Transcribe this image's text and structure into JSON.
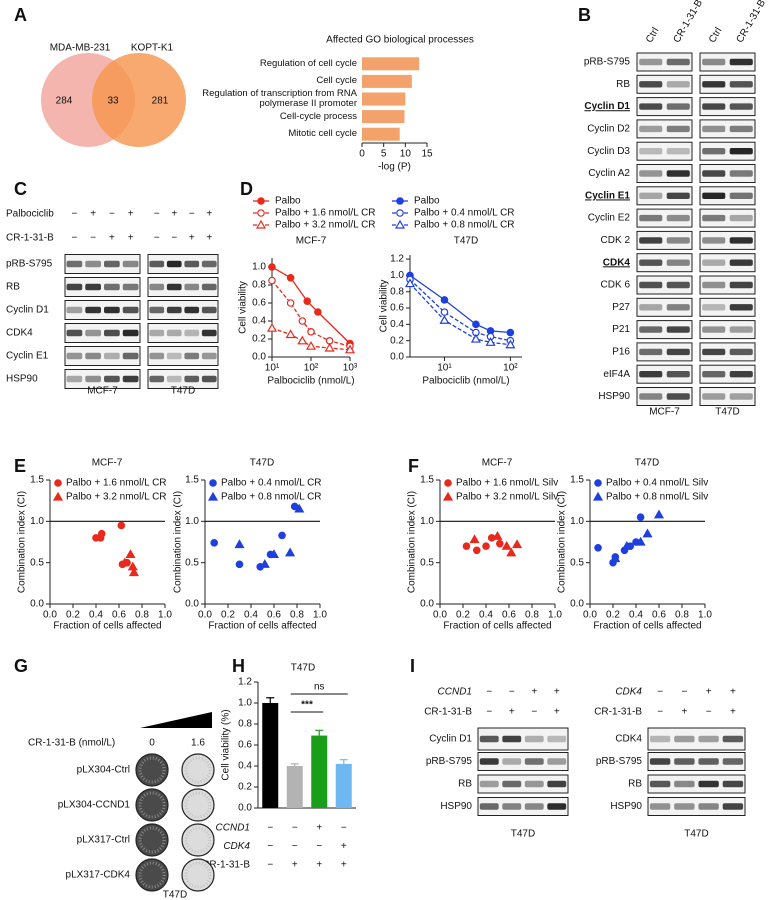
{
  "panel_labels": [
    "A",
    "B",
    "C",
    "D",
    "E",
    "F",
    "G",
    "H",
    "I"
  ],
  "venn": {
    "sets": [
      "MDA-MB-231",
      "KOPT-K1"
    ],
    "counts": [
      284,
      33,
      281
    ],
    "colors": [
      "#f4b5ae",
      "#f7964f"
    ]
  },
  "chart_data": [
    {
      "type": "barh",
      "title": "Affected GO biological processes",
      "categories": [
        "Regulation of cell cycle",
        "Cell cycle",
        "Regulation of transcription from RNA polymerase II promoter",
        "Cell-cycle process",
        "Mitotic cell cycle"
      ],
      "values": [
        13.2,
        11.5,
        10.0,
        9.8,
        8.7
      ],
      "color": "#f4a26b",
      "xlim": [
        0,
        15
      ],
      "xticks": [
        0,
        5,
        10,
        15
      ],
      "xlabel": "-log (P)"
    },
    {
      "type": "line",
      "title": "MCF-7",
      "xlabel": "Palbociclib (nmol/L)",
      "ylabel": "Cell viability",
      "xscale": "log",
      "xlim": [
        10,
        1000
      ],
      "xticks": [
        {
          "value": 10,
          "label": "10¹"
        },
        {
          "value": 100,
          "label": "10²"
        },
        {
          "value": 1000,
          "label": "10³"
        }
      ],
      "ylim": [
        0,
        1.1
      ],
      "yticks": [
        {
          "value": 0,
          "label": "0.0"
        },
        {
          "value": 0.2,
          "label": "0.2"
        },
        {
          "value": 0.4,
          "label": "0.4"
        },
        {
          "value": 0.6,
          "label": "0.6"
        },
        {
          "value": 0.8,
          "label": "0.8"
        },
        {
          "value": 1,
          "label": "1.0"
        }
      ],
      "series": [
        {
          "name": "Palbo",
          "color": "#e8291c",
          "marker": "circle",
          "line": "solid",
          "x": [
            10,
            30,
            80,
            150,
            1000
          ],
          "values": [
            1.0,
            0.88,
            0.62,
            0.5,
            0.15
          ]
        },
        {
          "name": "Palbo + 1.6 nmol/L CR",
          "color": "#e8291c",
          "marker": "open-circle",
          "line": "dashed",
          "x": [
            10,
            30,
            60,
            100,
            300,
            1000
          ],
          "values": [
            0.85,
            0.6,
            0.4,
            0.28,
            0.18,
            0.12
          ]
        },
        {
          "name": "Palbo + 3.2 nmol/L CR",
          "color": "#e8291c",
          "marker": "open-triangle",
          "line": "dashed",
          "x": [
            10,
            30,
            60,
            100,
            300,
            1000
          ],
          "values": [
            0.32,
            0.25,
            0.18,
            0.12,
            0.1,
            0.08
          ]
        }
      ]
    },
    {
      "type": "line",
      "title": "T47D",
      "xlabel": "Palbociclib (nmol/L)",
      "ylabel": "Cell viability",
      "xscale": "log",
      "xlim": [
        3,
        150
      ],
      "xticks": [
        {
          "value": 10,
          "label": "10¹"
        },
        {
          "value": 100,
          "label": "10²"
        }
      ],
      "ylim": [
        0,
        1.25
      ],
      "yticks": [
        {
          "value": 0,
          "label": "0.0"
        },
        {
          "value": 0.2,
          "label": "0.2"
        },
        {
          "value": 0.4,
          "label": "0.4"
        },
        {
          "value": 0.6,
          "label": "0.6"
        },
        {
          "value": 0.8,
          "label": "0.8"
        },
        {
          "value": 1,
          "label": "1.0"
        },
        {
          "value": 1.2,
          "label": "1.2"
        }
      ],
      "series": [
        {
          "name": "Palbo",
          "color": "#1f3fe0",
          "marker": "circle",
          "line": "solid",
          "x": [
            3,
            10,
            30,
            50,
            100
          ],
          "values": [
            1.0,
            0.7,
            0.4,
            0.32,
            0.3
          ]
        },
        {
          "name": "Palbo + 0.4 nmol/L CR",
          "color": "#1f3fe0",
          "marker": "open-circle",
          "line": "dashed",
          "x": [
            3,
            10,
            30,
            50,
            100
          ],
          "values": [
            0.95,
            0.55,
            0.3,
            0.25,
            0.2
          ]
        },
        {
          "name": "Palbo + 0.8 nmol/L CR",
          "color": "#1f3fe0",
          "marker": "open-triangle",
          "line": "dashed",
          "x": [
            3,
            10,
            30,
            50,
            100
          ],
          "values": [
            0.9,
            0.45,
            0.22,
            0.18,
            0.15
          ]
        }
      ]
    },
    {
      "type": "scatter",
      "title": "MCF-7",
      "xlabel": "Fraction of cells affected",
      "ylabel": "Combination index (CI)",
      "reference_line": 1,
      "xlim": [
        0,
        1
      ],
      "xticks": [
        {
          "value": 0,
          "label": "0.0"
        },
        {
          "value": 0.2,
          "label": "0.2"
        },
        {
          "value": 0.4,
          "label": "0.4"
        },
        {
          "value": 0.6,
          "label": "0.6"
        },
        {
          "value": 0.8,
          "label": "0.8"
        },
        {
          "value": 1,
          "label": "1.0"
        }
      ],
      "ylim": [
        0,
        1.5
      ],
      "yticks": [
        {
          "value": 0,
          "label": "0.0"
        },
        {
          "value": 0.5,
          "label": "0.5"
        },
        {
          "value": 1,
          "label": "1.0"
        },
        {
          "value": 1.5,
          "label": "1.5"
        }
      ],
      "series": [
        {
          "name": "Palbo + 1.6 nmol/L CR",
          "color": "#e8291c",
          "marker": "circle",
          "x": [
            0.4,
            0.44,
            0.45,
            0.62,
            0.63,
            0.67
          ],
          "values": [
            0.8,
            0.8,
            0.85,
            0.95,
            0.48,
            0.5
          ]
        },
        {
          "name": "Palbo + 3.2 nmol/L CR",
          "color": "#e8291c",
          "marker": "triangle",
          "x": [
            0.65,
            0.7,
            0.72,
            0.73
          ],
          "values": [
            0.5,
            0.6,
            0.45,
            0.38
          ]
        }
      ]
    },
    {
      "type": "scatter",
      "title": "T47D",
      "xlabel": "Fraction of cells affected",
      "ylabel": "Combination index (CI)",
      "reference_line": 1,
      "xlim": [
        0,
        1
      ],
      "xticks": [
        {
          "value": 0,
          "label": "0.0"
        },
        {
          "value": 0.2,
          "label": "0.2"
        },
        {
          "value": 0.4,
          "label": "0.4"
        },
        {
          "value": 0.6,
          "label": "0.6"
        },
        {
          "value": 0.8,
          "label": "0.8"
        },
        {
          "value": 1,
          "label": "1.0"
        }
      ],
      "ylim": [
        0,
        1.5
      ],
      "yticks": [
        {
          "value": 0,
          "label": "0.0"
        },
        {
          "value": 0.5,
          "label": "0.5"
        },
        {
          "value": 1,
          "label": "1.0"
        },
        {
          "value": 1.5,
          "label": "1.5"
        }
      ],
      "series": [
        {
          "name": "Palbo + 0.4 nmol/L CR",
          "color": "#1f3fe0",
          "marker": "circle",
          "x": [
            0.08,
            0.3,
            0.48,
            0.57,
            0.67,
            0.78
          ],
          "values": [
            0.74,
            0.48,
            0.45,
            0.6,
            0.83,
            1.18
          ]
        },
        {
          "name": "Palbo + 0.8 nmol/L CR",
          "color": "#1f3fe0",
          "marker": "triangle",
          "x": [
            0.3,
            0.52,
            0.6,
            0.74,
            0.82
          ],
          "values": [
            0.72,
            0.48,
            0.6,
            0.62,
            1.15
          ]
        }
      ]
    },
    {
      "type": "scatter",
      "title": "MCF-7",
      "xlabel": "Fraction of cells affected",
      "ylabel": "Combination index (CI)",
      "reference_line": 1,
      "xlim": [
        0,
        1
      ],
      "xticks": [
        {
          "value": 0,
          "label": "0.0"
        },
        {
          "value": 0.2,
          "label": "0.2"
        },
        {
          "value": 0.4,
          "label": "0.4"
        },
        {
          "value": 0.6,
          "label": "0.6"
        },
        {
          "value": 0.8,
          "label": "0.8"
        },
        {
          "value": 1,
          "label": "1.0"
        }
      ],
      "ylim": [
        0,
        1.5
      ],
      "yticks": [
        {
          "value": 0,
          "label": "0.0"
        },
        {
          "value": 0.5,
          "label": "0.5"
        },
        {
          "value": 1,
          "label": "1.0"
        },
        {
          "value": 1.5,
          "label": "1.5"
        }
      ],
      "series": [
        {
          "name": "Palbo + 1.6 nmol/L Silv",
          "color": "#e8291c",
          "marker": "circle",
          "x": [
            0.23,
            0.32,
            0.4,
            0.45,
            0.52
          ],
          "values": [
            0.7,
            0.65,
            0.7,
            0.8,
            0.73
          ]
        },
        {
          "name": "Palbo + 3.2 nmol/L Silv",
          "color": "#e8291c",
          "marker": "triangle",
          "x": [
            0.3,
            0.5,
            0.58,
            0.62,
            0.67
          ],
          "values": [
            0.78,
            0.82,
            0.7,
            0.62,
            0.72
          ]
        }
      ]
    },
    {
      "type": "scatter",
      "title": "T47D",
      "xlabel": "Fraction of cells affected",
      "ylabel": "Combination index (CI)",
      "reference_line": 1,
      "xlim": [
        0,
        1
      ],
      "xticks": [
        {
          "value": 0,
          "label": "0.0"
        },
        {
          "value": 0.2,
          "label": "0.2"
        },
        {
          "value": 0.4,
          "label": "0.4"
        },
        {
          "value": 0.6,
          "label": "0.6"
        },
        {
          "value": 0.8,
          "label": "0.8"
        },
        {
          "value": 1,
          "label": "1.0"
        }
      ],
      "ylim": [
        0,
        1.5
      ],
      "yticks": [
        {
          "value": 0,
          "label": "0.0"
        },
        {
          "value": 0.5,
          "label": "0.5"
        },
        {
          "value": 1,
          "label": "1.0"
        },
        {
          "value": 1.5,
          "label": "1.5"
        }
      ],
      "series": [
        {
          "name": "Palbo + 0.4 nmol/L Silv",
          "color": "#1f3fe0",
          "marker": "circle",
          "x": [
            0.07,
            0.2,
            0.22,
            0.3,
            0.35,
            0.4,
            0.44
          ],
          "values": [
            0.68,
            0.5,
            0.57,
            0.65,
            0.7,
            0.75,
            1.05
          ]
        },
        {
          "name": "Palbo + 0.8 nmol/L Silv",
          "color": "#1f3fe0",
          "marker": "triangle",
          "x": [
            0.22,
            0.32,
            0.44,
            0.5,
            0.6
          ],
          "values": [
            0.55,
            0.7,
            0.75,
            0.85,
            1.08
          ]
        }
      ]
    },
    {
      "type": "bar",
      "title": "T47D",
      "ylabel": "Cell viability (%)",
      "values": [
        1.0,
        0.4,
        0.69,
        0.42
      ],
      "errors": [
        0.05,
        0.02,
        0.05,
        0.04
      ],
      "colors": [
        "#000000",
        "#b3b3b3",
        "#1a9e1a",
        "#6fb7f0"
      ],
      "ylim": [
        0,
        1.2
      ],
      "yticks": [
        {
          "value": 0,
          "label": "0.0"
        },
        {
          "value": 0.2,
          "label": "0.2"
        },
        {
          "value": 0.4,
          "label": "0.4"
        },
        {
          "value": 0.6,
          "label": "0.6"
        },
        {
          "value": 0.8,
          "label": "0.8"
        },
        {
          "value": 1,
          "label": "1.0"
        },
        {
          "value": 1.2,
          "label": "1.2"
        }
      ],
      "annotations": [
        "***",
        "ns"
      ],
      "conditions": [
        {
          "name": "CCND1",
          "signs": [
            "−",
            "−",
            "+",
            "−"
          ]
        },
        {
          "name": "CDK4",
          "signs": [
            "−",
            "−",
            "−",
            "+"
          ]
        },
        {
          "name": "CR-1-31-B",
          "signs": [
            "−",
            "+",
            "+",
            "+"
          ]
        }
      ]
    }
  ],
  "blots": {
    "B": {
      "columns": [
        "Ctrl",
        "CR-1-31-B",
        "Ctrl",
        "CR-1-31-B"
      ],
      "rows": [
        {
          "label": "pRB-S795"
        },
        {
          "label": "RB"
        },
        {
          "label": "Cyclin D1",
          "highlight": true
        },
        {
          "label": "Cyclin D2"
        },
        {
          "label": "Cyclin D3"
        },
        {
          "label": "Cyclin A2"
        },
        {
          "label": "Cyclin E1",
          "highlight": true
        },
        {
          "label": "Cyclin E2"
        },
        {
          "label": "CDK 2"
        },
        {
          "label": "CDK4",
          "highlight": true
        },
        {
          "label": "CDK 6"
        },
        {
          "label": "P27"
        },
        {
          "label": "P21"
        },
        {
          "label": "P16"
        },
        {
          "label": "eIF4A"
        },
        {
          "label": "HSP90"
        }
      ],
      "groups": [
        "MCF-7",
        "T47D"
      ]
    },
    "C": {
      "treatments": [
        {
          "name": "Palbociclib",
          "signs": [
            "−",
            "+",
            "−",
            "+",
            "−",
            "+",
            "−",
            "+"
          ]
        },
        {
          "name": "CR-1-31-B",
          "signs": [
            "−",
            "−",
            "+",
            "+",
            "−",
            "−",
            "+",
            "+"
          ]
        }
      ],
      "rows": [
        "pRB-S795",
        "RB",
        "Cyclin D1",
        "CDK4",
        "Cyclin E1",
        "HSP90"
      ],
      "groups": [
        "MCF-7",
        "T47D"
      ]
    },
    "I_left": {
      "treatments": [
        {
          "name": "CCND1",
          "signs": [
            "−",
            "−",
            "+",
            "+"
          ]
        },
        {
          "name": "CR-1-31-B",
          "signs": [
            "−",
            "+",
            "−",
            "+"
          ]
        }
      ],
      "rows": [
        "Cyclin D1",
        "pRB-S795",
        "RB",
        "HSP90"
      ],
      "group": "T47D"
    },
    "I_right": {
      "treatments": [
        {
          "name": "CDK4",
          "signs": [
            "−",
            "−",
            "+",
            "+"
          ]
        },
        {
          "name": "CR-1-31-B",
          "signs": [
            "−",
            "+",
            "−",
            "+"
          ]
        }
      ],
      "rows": [
        "CDK4",
        "pRB-S795",
        "RB",
        "HSP90"
      ],
      "group": "T47D"
    }
  },
  "colony": {
    "dose_label": "CR-1-31-B (nmol/L)",
    "doses": [
      "0",
      "1.6"
    ],
    "rows": [
      "pLX304-Ctrl",
      "pLX304-CCND1",
      "pLX317-Ctrl",
      "pLX317-CDK4"
    ],
    "cell_line": "T47D"
  }
}
